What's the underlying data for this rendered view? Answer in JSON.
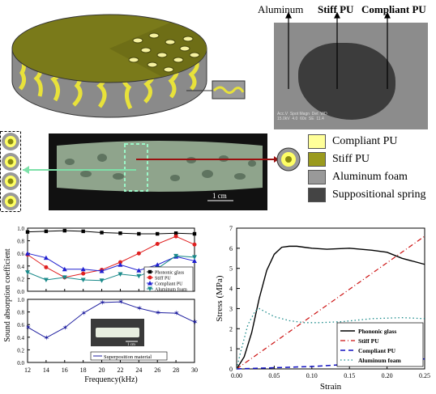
{
  "sem": {
    "labels": [
      "Aluminum",
      "Stiff PU",
      "Compliant PU"
    ],
    "info_text": "Acc.V  Spot Magn  Det  WD\n15.0kV  4.0  60x  SE  11.4"
  },
  "photo": {
    "scale_bar": "1 cm"
  },
  "legend": {
    "items": [
      {
        "label": "Compliant PU",
        "color": "#ffff99"
      },
      {
        "label": "Stiff PU",
        "color": "#9a9a1e"
      },
      {
        "label": "Aluminum foam",
        "color": "#999999"
      },
      {
        "label": "Suppositional spring",
        "color": "#444444"
      }
    ]
  },
  "chart_top_left": {
    "ylim": [
      0.0,
      1.0
    ],
    "yticks": [
      "0.0",
      "0.2",
      "0.4",
      "0.6",
      "0.8",
      "1.0"
    ],
    "legend": [
      "Phononic glass",
      "Stiff PU",
      "Compliant PU",
      "Aluminum foam"
    ]
  },
  "chart_bottom_left": {
    "ylim": [
      0.0,
      1.0
    ],
    "yticks": [
      "0.0",
      "0.2",
      "0.4",
      "0.6",
      "0.8",
      "1.0"
    ],
    "xticks": [
      "12",
      "14",
      "16",
      "18",
      "20",
      "22",
      "24",
      "26",
      "28",
      "30"
    ],
    "xlabel": "Frequency(kHz)",
    "ylabel": "Sound absorption coefficient",
    "legend": [
      "Superposition material"
    ],
    "inset_scale": "1 cm"
  },
  "chart_right": {
    "xlabel": "Strain",
    "ylabel": "Stress (MPa)",
    "xticks": [
      "0.00",
      "0.05",
      "0.10",
      "0.15",
      "0.20",
      "0.25"
    ],
    "yticks": [
      "0",
      "1",
      "2",
      "3",
      "4",
      "5",
      "6",
      "7"
    ],
    "legend": [
      "Phononic glass",
      "Stiff PU",
      "Compliant PU",
      "Aluminum foam"
    ]
  },
  "chart_data": [
    {
      "type": "line",
      "xlabel": "",
      "ylabel": "Sound absorption coefficient",
      "xlim": [
        12,
        30
      ],
      "ylim": [
        0,
        1
      ],
      "series": [
        {
          "name": "Phononic glass",
          "color": "#000000",
          "x": [
            12,
            14,
            16,
            18,
            20,
            22,
            24,
            26,
            28,
            30
          ],
          "y": [
            0.94,
            0.95,
            0.96,
            0.95,
            0.93,
            0.92,
            0.91,
            0.91,
            0.92,
            0.91
          ]
        },
        {
          "name": "Stiff PU",
          "color": "#e02020",
          "x": [
            12,
            14,
            16,
            18,
            20,
            22,
            24,
            26,
            28,
            30
          ],
          "y": [
            0.58,
            0.38,
            0.22,
            0.28,
            0.34,
            0.46,
            0.6,
            0.75,
            0.87,
            0.74
          ]
        },
        {
          "name": "Compliant PU",
          "color": "#2020d0",
          "x": [
            12,
            14,
            16,
            18,
            20,
            22,
            24,
            26,
            28,
            30
          ],
          "y": [
            0.6,
            0.53,
            0.35,
            0.35,
            0.32,
            0.42,
            0.33,
            0.42,
            0.55,
            0.48
          ]
        },
        {
          "name": "Aluminum foam",
          "color": "#1a8a8a",
          "x": [
            12,
            14,
            16,
            18,
            20,
            22,
            24,
            26,
            28,
            30
          ],
          "y": [
            0.3,
            0.18,
            0.22,
            0.18,
            0.17,
            0.27,
            0.24,
            0.36,
            0.56,
            0.54
          ]
        }
      ]
    },
    {
      "type": "line",
      "xlabel": "Frequency(kHz)",
      "xlim": [
        12,
        30
      ],
      "ylim": [
        0,
        1
      ],
      "series": [
        {
          "name": "Superposition material",
          "color": "#2020a0",
          "x": [
            12,
            14,
            16,
            18,
            20,
            22,
            24,
            26,
            28,
            30
          ],
          "y": [
            0.56,
            0.39,
            0.55,
            0.78,
            0.95,
            0.96,
            0.86,
            0.79,
            0.78,
            0.64
          ]
        }
      ]
    },
    {
      "type": "line",
      "xlabel": "Strain",
      "ylabel": "Stress (MPa)",
      "xlim": [
        0,
        0.25
      ],
      "ylim": [
        0,
        7
      ],
      "series": [
        {
          "name": "Phononic glass",
          "color": "#000000",
          "x": [
            0,
            0.01,
            0.02,
            0.03,
            0.04,
            0.05,
            0.06,
            0.07,
            0.08,
            0.1,
            0.12,
            0.15,
            0.18,
            0.2,
            0.22,
            0.25
          ],
          "y": [
            0,
            0.6,
            1.8,
            3.5,
            4.9,
            5.7,
            6.05,
            6.1,
            6.1,
            6.0,
            5.95,
            6.0,
            5.9,
            5.8,
            5.5,
            5.2
          ]
        },
        {
          "name": "Stiff PU",
          "color": "#cc1010",
          "x": [
            0,
            0.25
          ],
          "y": [
            0,
            6.6
          ]
        },
        {
          "name": "Compliant PU",
          "color": "#1010c0",
          "x": [
            0,
            0.1,
            0.2,
            0.25
          ],
          "y": [
            0,
            0.12,
            0.35,
            0.5
          ]
        },
        {
          "name": "Aluminum foam",
          "color": "#1a8a8a",
          "x": [
            0,
            0.005,
            0.015,
            0.025,
            0.03,
            0.04,
            0.05,
            0.07,
            0.09,
            0.11,
            0.14,
            0.18,
            0.22,
            0.25
          ],
          "y": [
            0,
            0.8,
            2.2,
            2.9,
            3.0,
            2.8,
            2.6,
            2.4,
            2.3,
            2.3,
            2.35,
            2.5,
            2.55,
            2.5
          ]
        }
      ]
    }
  ]
}
